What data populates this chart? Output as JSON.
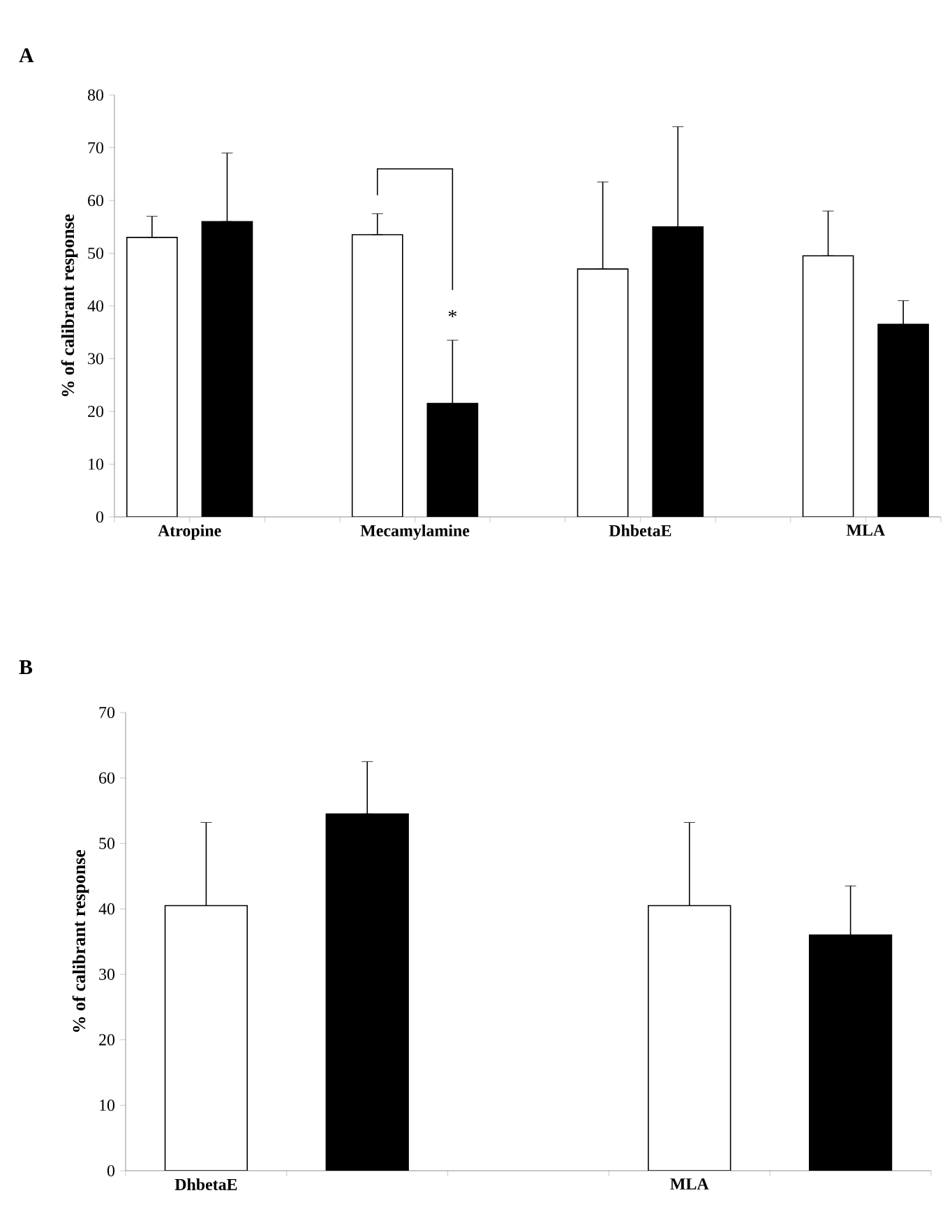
{
  "chart_data": [
    {
      "type": "bar",
      "title": "A",
      "ylabel": "% of calibrant response",
      "categories": [
        "Atropine",
        "Mecamylamine",
        "DhbetaE",
        "MLA"
      ],
      "ylim": [
        0,
        80
      ],
      "yticks": [
        0,
        10,
        20,
        30,
        40,
        50,
        60,
        70,
        80
      ],
      "series": [
        {
          "color": "#ffffff",
          "values": [
            53,
            53.5,
            47,
            49.5
          ],
          "errors": [
            [
              53,
              57
            ],
            [
              53.5,
              57.5
            ],
            [
              47,
              63.5
            ],
            [
              49.5,
              58
            ]
          ]
        },
        {
          "color": "#000000",
          "values": [
            56,
            21.5,
            55,
            36.5
          ],
          "errors": [
            [
              56,
              69
            ],
            [
              21.5,
              33.5
            ],
            [
              55,
              74
            ],
            [
              36.5,
              41
            ]
          ]
        }
      ],
      "annotations": [
        "*"
      ]
    },
    {
      "type": "bar",
      "title": "B",
      "ylabel": "% of calibrant response",
      "categories": [
        "DhbetaE",
        "MLA"
      ],
      "ylim": [
        0,
        70
      ],
      "yticks": [
        0,
        10,
        20,
        30,
        40,
        50,
        60,
        70
      ],
      "series": [
        {
          "color": "#ffffff",
          "values": [
            40.5,
            40.5
          ],
          "errors": [
            [
              40.5,
              53.2
            ],
            [
              40.5,
              53.2
            ]
          ]
        },
        {
          "color": "#000000",
          "values": [
            54.5,
            36
          ],
          "errors": [
            [
              54.5,
              62.5
            ],
            [
              36,
              43.5
            ]
          ]
        }
      ]
    }
  ]
}
